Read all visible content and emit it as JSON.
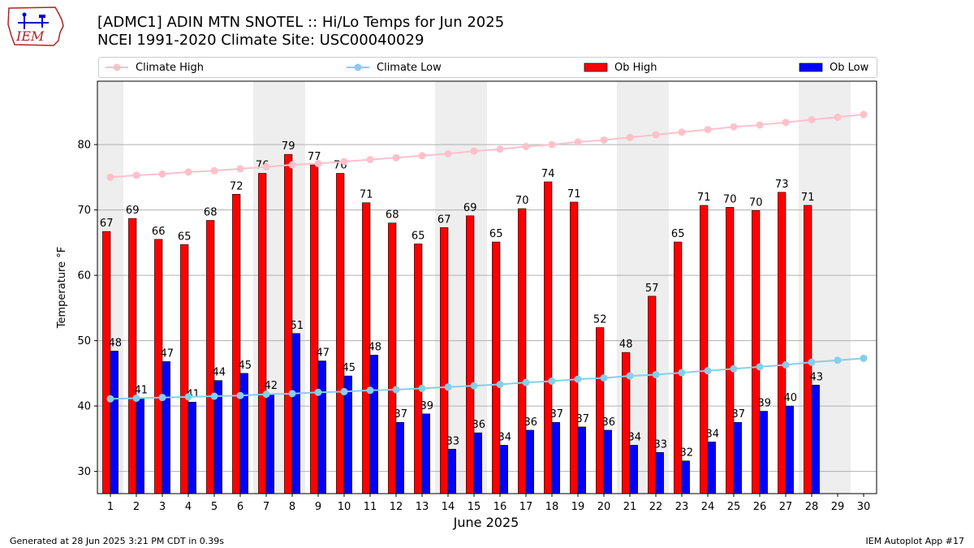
{
  "header": {
    "title_line1": "[ADMC1] ADIN MTN SNOTEL :: Hi/Lo Temps for Jun 2025",
    "title_line2": "NCEI 1991-2020 Climate Site: USC00040029",
    "logo_text": "IEM"
  },
  "legend": {
    "climate_high": "Climate High",
    "climate_low": "Climate Low",
    "ob_high": "Ob High",
    "ob_low": "Ob Low"
  },
  "footer": {
    "generated": "Generated at 28 Jun 2025 3:21 PM CDT in 0.39s",
    "app": "IEM Autoplot App #17"
  },
  "colors": {
    "ob_high": "#ff0000",
    "ob_low": "#0000ff",
    "climate_high": "#ffc0cb",
    "climate_low": "#87ceeb",
    "weekend_band": "#eeeeee",
    "grid": "#b0b0b0"
  },
  "chart_data": {
    "type": "bar",
    "title": "[ADMC1] ADIN MTN SNOTEL :: Hi/Lo Temps for Jun 2025",
    "xlabel": "June 2025",
    "ylabel": "Temperature °F",
    "ylim": [
      26.6,
      89.7
    ],
    "yticks": [
      30,
      40,
      50,
      60,
      70,
      80
    ],
    "days": [
      1,
      2,
      3,
      4,
      5,
      6,
      7,
      8,
      9,
      10,
      11,
      12,
      13,
      14,
      15,
      16,
      17,
      18,
      19,
      20,
      21,
      22,
      23,
      24,
      25,
      26,
      27,
      28,
      29,
      30
    ],
    "shaded_days": [
      1,
      7,
      8,
      14,
      15,
      21,
      22,
      28,
      29
    ],
    "grid": true,
    "legend_position": "top",
    "series": [
      {
        "name": "Ob High",
        "kind": "bar",
        "values": [
          66.7,
          68.7,
          65.5,
          64.7,
          68.4,
          72.4,
          75.6,
          78.5,
          76.9,
          75.6,
          71.1,
          68.0,
          64.8,
          67.3,
          69.1,
          65.1,
          70.2,
          74.3,
          71.2,
          52.0,
          48.2,
          56.8,
          65.1,
          70.7,
          70.4,
          69.9,
          72.7,
          70.7
        ],
        "labels": [
          "67",
          "69",
          "66",
          "65",
          "68",
          "72",
          "76",
          "79",
          "77",
          "76",
          "71",
          "68",
          "65",
          "67",
          "69",
          "65",
          "70",
          "74",
          "71",
          "52",
          "48",
          "57",
          "65",
          "71",
          "70",
          "70",
          "73",
          "71"
        ]
      },
      {
        "name": "Ob Low",
        "kind": "bar",
        "values": [
          48.4,
          41.2,
          46.8,
          40.6,
          43.9,
          45.0,
          41.9,
          51.1,
          46.9,
          44.6,
          47.8,
          37.5,
          38.8,
          33.4,
          35.9,
          34.0,
          36.3,
          37.5,
          36.8,
          36.3,
          34.0,
          32.9,
          31.6,
          34.5,
          37.5,
          39.2,
          40.0,
          43.2
        ],
        "labels": [
          "48",
          "41",
          "47",
          "41",
          "44",
          "45",
          "42",
          "51",
          "47",
          "45",
          "48",
          "37",
          "39",
          "33",
          "36",
          "34",
          "36",
          "37",
          "37",
          "36",
          "34",
          "33",
          "32",
          "34",
          "37",
          "39",
          "40",
          "43"
        ]
      },
      {
        "name": "Climate High",
        "kind": "line",
        "values": [
          75.0,
          75.3,
          75.5,
          75.8,
          76.0,
          76.3,
          76.6,
          76.9,
          77.1,
          77.4,
          77.7,
          78.0,
          78.3,
          78.6,
          79.0,
          79.3,
          79.7,
          80.0,
          80.4,
          80.7,
          81.1,
          81.5,
          81.9,
          82.3,
          82.7,
          83.0,
          83.4,
          83.8,
          84.2,
          84.6
        ]
      },
      {
        "name": "Climate Low",
        "kind": "line",
        "values": [
          41.1,
          41.2,
          41.3,
          41.4,
          41.5,
          41.6,
          41.8,
          41.9,
          42.1,
          42.2,
          42.4,
          42.5,
          42.7,
          42.9,
          43.1,
          43.3,
          43.6,
          43.8,
          44.1,
          44.3,
          44.6,
          44.8,
          45.1,
          45.4,
          45.7,
          46.0,
          46.3,
          46.7,
          47.0,
          47.3
        ]
      }
    ]
  }
}
